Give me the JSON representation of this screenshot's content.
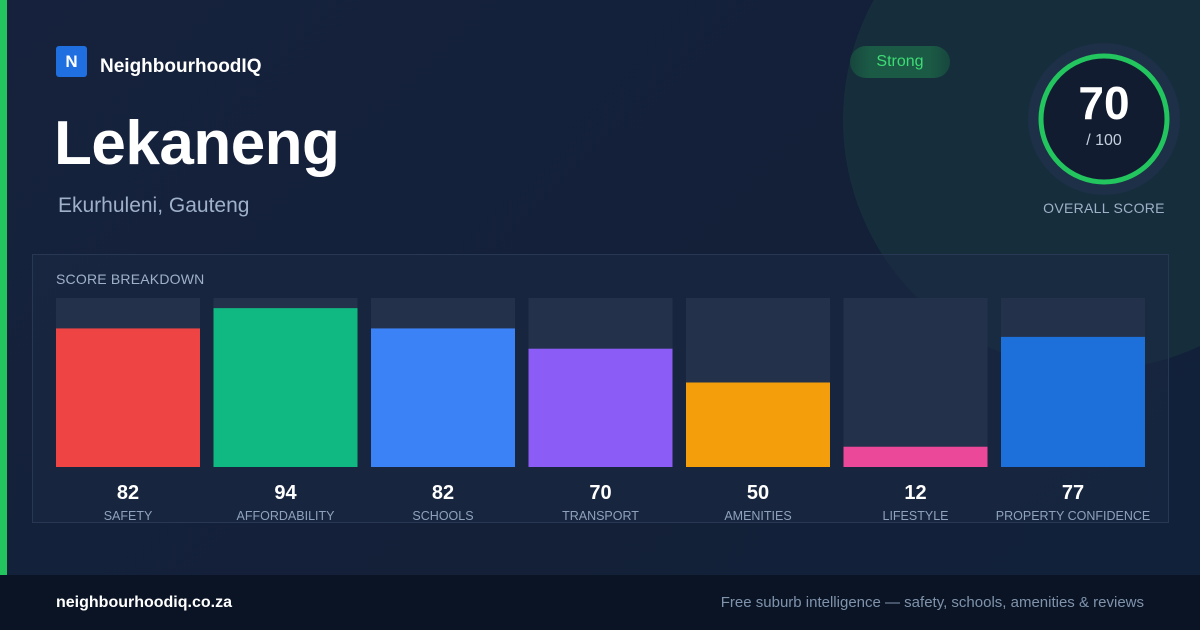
{
  "brand": {
    "logo_letter": "N",
    "name": "NeighbourhoodIQ"
  },
  "suburb": {
    "name": "Lekaneng",
    "location": "Ekurhuleni, Gauteng"
  },
  "rating_badge": "Strong",
  "overall": {
    "score": "70",
    "max": "/ 100",
    "label": "OVERALL SCORE",
    "value": 70,
    "color": "#22c55e"
  },
  "breakdown_title": "SCORE BREAKDOWN",
  "chart_data": {
    "type": "bar",
    "title": "SCORE BREAKDOWN",
    "ylim": [
      0,
      100
    ],
    "grid": false,
    "categories": [
      "SAFETY",
      "AFFORDABILITY",
      "SCHOOLS",
      "TRANSPORT",
      "AMENITIES",
      "LIFESTYLE",
      "PROPERTY CONFIDENCE"
    ],
    "values": [
      82,
      94,
      82,
      70,
      50,
      12,
      77
    ],
    "colors": [
      "#ef4444",
      "#10b981",
      "#3b82f6",
      "#8b5cf6",
      "#f59e0b",
      "#ec4899",
      "#1d6fd9"
    ]
  },
  "footer": {
    "url": "neighbourhoodiq.co.za",
    "tagline": "Free suburb intelligence — safety, schools, amenities & reviews"
  }
}
